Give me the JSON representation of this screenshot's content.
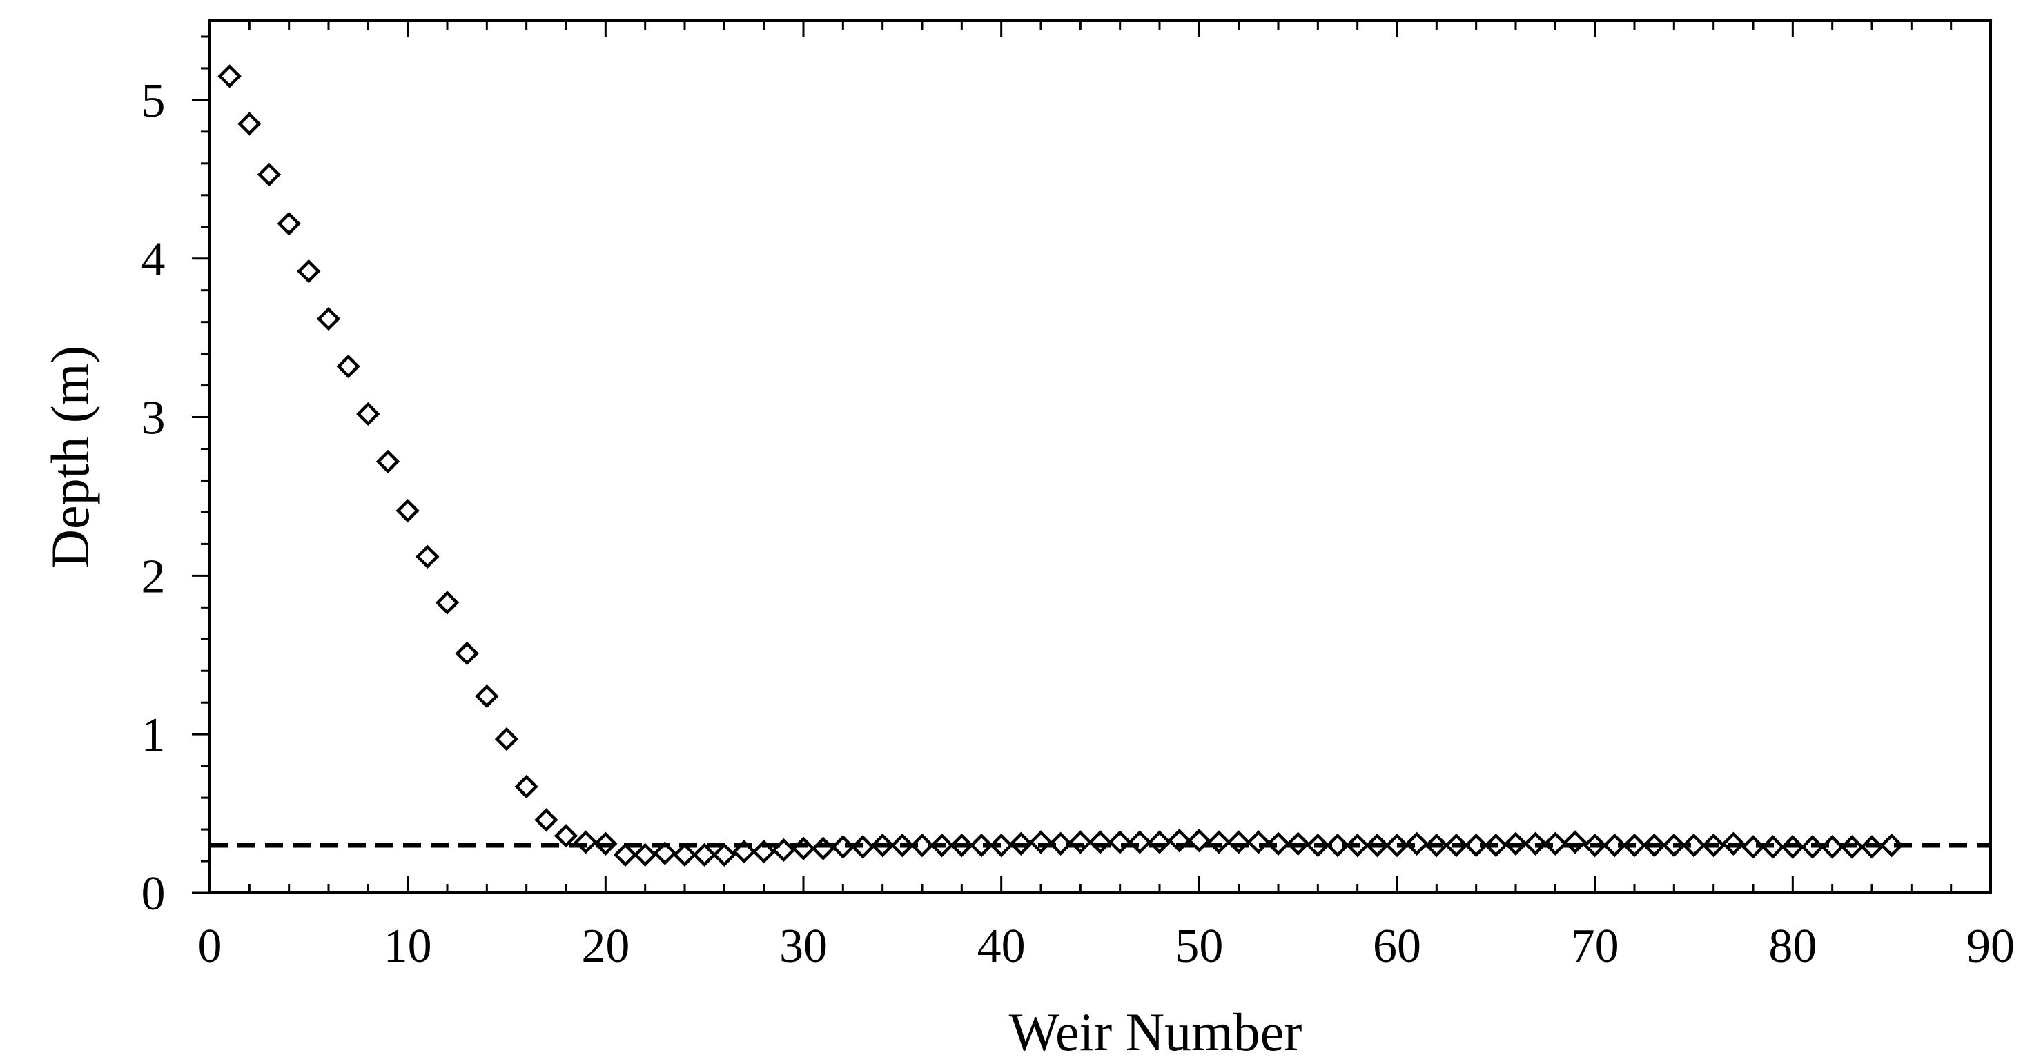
{
  "chart_data": {
    "type": "scatter",
    "title": "",
    "xlabel": "Weir Number",
    "ylabel": "Depth (m)",
    "xlim": [
      0,
      90
    ],
    "ylim": [
      0,
      5.5
    ],
    "x_ticks": [
      "0",
      "10",
      "20",
      "30",
      "40",
      "50",
      "60",
      "70",
      "80",
      "90"
    ],
    "y_ticks": [
      "0",
      "1",
      "2",
      "3",
      "4",
      "5"
    ],
    "grid": false,
    "legend": "none",
    "marker": "open diamond",
    "colors": {
      "marker": "#000000",
      "reference_line": "#000000",
      "axes": "#000000"
    },
    "reference_line": {
      "y": 0.3,
      "style": "dashed"
    },
    "series": [
      {
        "x": [
          1,
          2,
          3,
          4,
          5,
          6,
          7,
          8,
          9,
          10,
          11,
          12,
          13,
          14,
          15,
          16,
          17,
          18,
          19,
          20,
          21,
          22,
          23,
          24,
          25,
          26,
          27,
          28,
          29,
          30,
          31,
          32,
          33,
          34,
          35,
          36,
          37,
          38,
          39,
          40,
          41,
          42,
          43,
          44,
          45,
          46,
          47,
          48,
          49,
          50,
          51,
          52,
          53,
          54,
          55,
          56,
          57,
          58,
          59,
          60,
          61,
          62,
          63,
          64,
          65,
          66,
          67,
          68,
          69,
          70,
          71,
          72,
          73,
          74,
          75,
          76,
          77,
          78,
          79,
          80,
          81,
          82,
          83,
          84,
          85
        ],
        "y": [
          5.15,
          4.85,
          4.53,
          4.22,
          3.92,
          3.62,
          3.32,
          3.02,
          2.72,
          2.41,
          2.12,
          1.83,
          1.51,
          1.24,
          0.97,
          0.67,
          0.46,
          0.36,
          0.32,
          0.31,
          0.24,
          0.24,
          0.25,
          0.24,
          0.24,
          0.24,
          0.26,
          0.26,
          0.27,
          0.28,
          0.28,
          0.29,
          0.29,
          0.3,
          0.3,
          0.3,
          0.3,
          0.3,
          0.3,
          0.3,
          0.31,
          0.32,
          0.31,
          0.32,
          0.32,
          0.32,
          0.32,
          0.32,
          0.33,
          0.33,
          0.32,
          0.32,
          0.32,
          0.31,
          0.31,
          0.3,
          0.3,
          0.3,
          0.3,
          0.3,
          0.31,
          0.3,
          0.3,
          0.3,
          0.3,
          0.31,
          0.31,
          0.31,
          0.32,
          0.3,
          0.3,
          0.3,
          0.3,
          0.3,
          0.3,
          0.3,
          0.31,
          0.29,
          0.29,
          0.29,
          0.29,
          0.29,
          0.29,
          0.29,
          0.3
        ]
      }
    ]
  }
}
